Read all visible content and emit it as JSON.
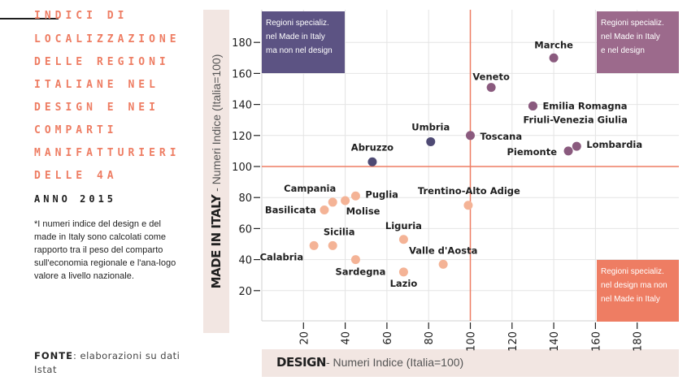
{
  "sidebar": {
    "title_lines": [
      "INDICI DI",
      "LOCALIZZAZIONE",
      "DELLE REGIONI",
      "ITALIANE NEL",
      "DESIGN E NEI",
      "COMPARTI",
      "MANIFATTURIERI",
      "DELLE 4A"
    ],
    "year": "ANNO 2015",
    "footnote": "*I numeri indice del design e del made in Italy sono calcolati come rapporto tra il peso del comparto sull'economia regionale e l'ana-logo valore a livello nazionale.",
    "source_label": "FONTE",
    "source_text": ": elaborazioni su dati Istat"
  },
  "quadrants": {
    "top_left": [
      "Regioni specializ.",
      "nel Made in Italy",
      "ma non nel design"
    ],
    "top_right": [
      "Regioni specializ.",
      "nel Made in Italy",
      "e nel design"
    ],
    "bottom_right": [
      "Regioni specializ.",
      "nel design ma non",
      "nel Made in Italy"
    ]
  },
  "colors": {
    "dark_point": "#4e4a74",
    "mid_point": "#8a5a7e",
    "light_point": "#f4b396",
    "ref_line": "#ee7d63",
    "grid": "#e4e4e4",
    "box_top_left": "#5c5383",
    "box_top_right": "#9c6a8c",
    "box_bottom_right": "#ee7d63"
  },
  "chart_data": {
    "type": "scatter",
    "xlabel_bold": "DESIGN",
    "xlabel_rest": "- Numeri Indice (Italia=100)",
    "ylabel_bold": "MADE IN ITALY",
    "ylabel_rest": " - Numeri Indice (Italia=100)",
    "xlim": [
      0,
      200
    ],
    "ylim": [
      0,
      195
    ],
    "x_ticks": [
      20,
      40,
      60,
      80,
      100,
      120,
      140,
      160,
      180
    ],
    "y_ticks": [
      20,
      40,
      60,
      80,
      100,
      120,
      140,
      160,
      180
    ],
    "reference_x": 100,
    "reference_y": 100,
    "points": [
      {
        "name": "Marche",
        "x": 140,
        "y": 170,
        "group": "mid"
      },
      {
        "name": "Veneto",
        "x": 110,
        "y": 151,
        "group": "mid"
      },
      {
        "name": "Emilia Romagna",
        "x": 130,
        "y": 139,
        "group": "mid"
      },
      {
        "name": "Friuli-Venezia Giulia",
        "x": 130,
        "y": 139,
        "group": "mid"
      },
      {
        "name": "Toscana",
        "x": 100,
        "y": 120,
        "group": "mid"
      },
      {
        "name": "Piemonte",
        "x": 147,
        "y": 110,
        "group": "mid"
      },
      {
        "name": "Lombardia",
        "x": 151,
        "y": 113,
        "group": "mid"
      },
      {
        "name": "Umbria",
        "x": 81,
        "y": 116,
        "group": "dark"
      },
      {
        "name": "Abruzzo",
        "x": 53,
        "y": 103,
        "group": "dark"
      },
      {
        "name": "Trentino-Alto Adige",
        "x": 99,
        "y": 75,
        "group": "light"
      },
      {
        "name": "Campania",
        "x": 34,
        "y": 77,
        "group": "light"
      },
      {
        "name": "Puglia",
        "x": 45,
        "y": 81,
        "group": "light"
      },
      {
        "name": "Molise",
        "x": 40,
        "y": 78,
        "group": "light"
      },
      {
        "name": "Basilicata",
        "x": 30,
        "y": 72,
        "group": "light"
      },
      {
        "name": "Liguria",
        "x": 68,
        "y": 53,
        "group": "light"
      },
      {
        "name": "Sicilia",
        "x": 34,
        "y": 49,
        "group": "light"
      },
      {
        "name": "Calabria",
        "x": 25,
        "y": 49,
        "group": "light"
      },
      {
        "name": "Sardegna",
        "x": 45,
        "y": 40,
        "group": "light"
      },
      {
        "name": "Valle d'Aosta",
        "x": 87,
        "y": 37,
        "group": "light"
      },
      {
        "name": "Lazio",
        "x": 68,
        "y": 32,
        "group": "light"
      }
    ]
  }
}
